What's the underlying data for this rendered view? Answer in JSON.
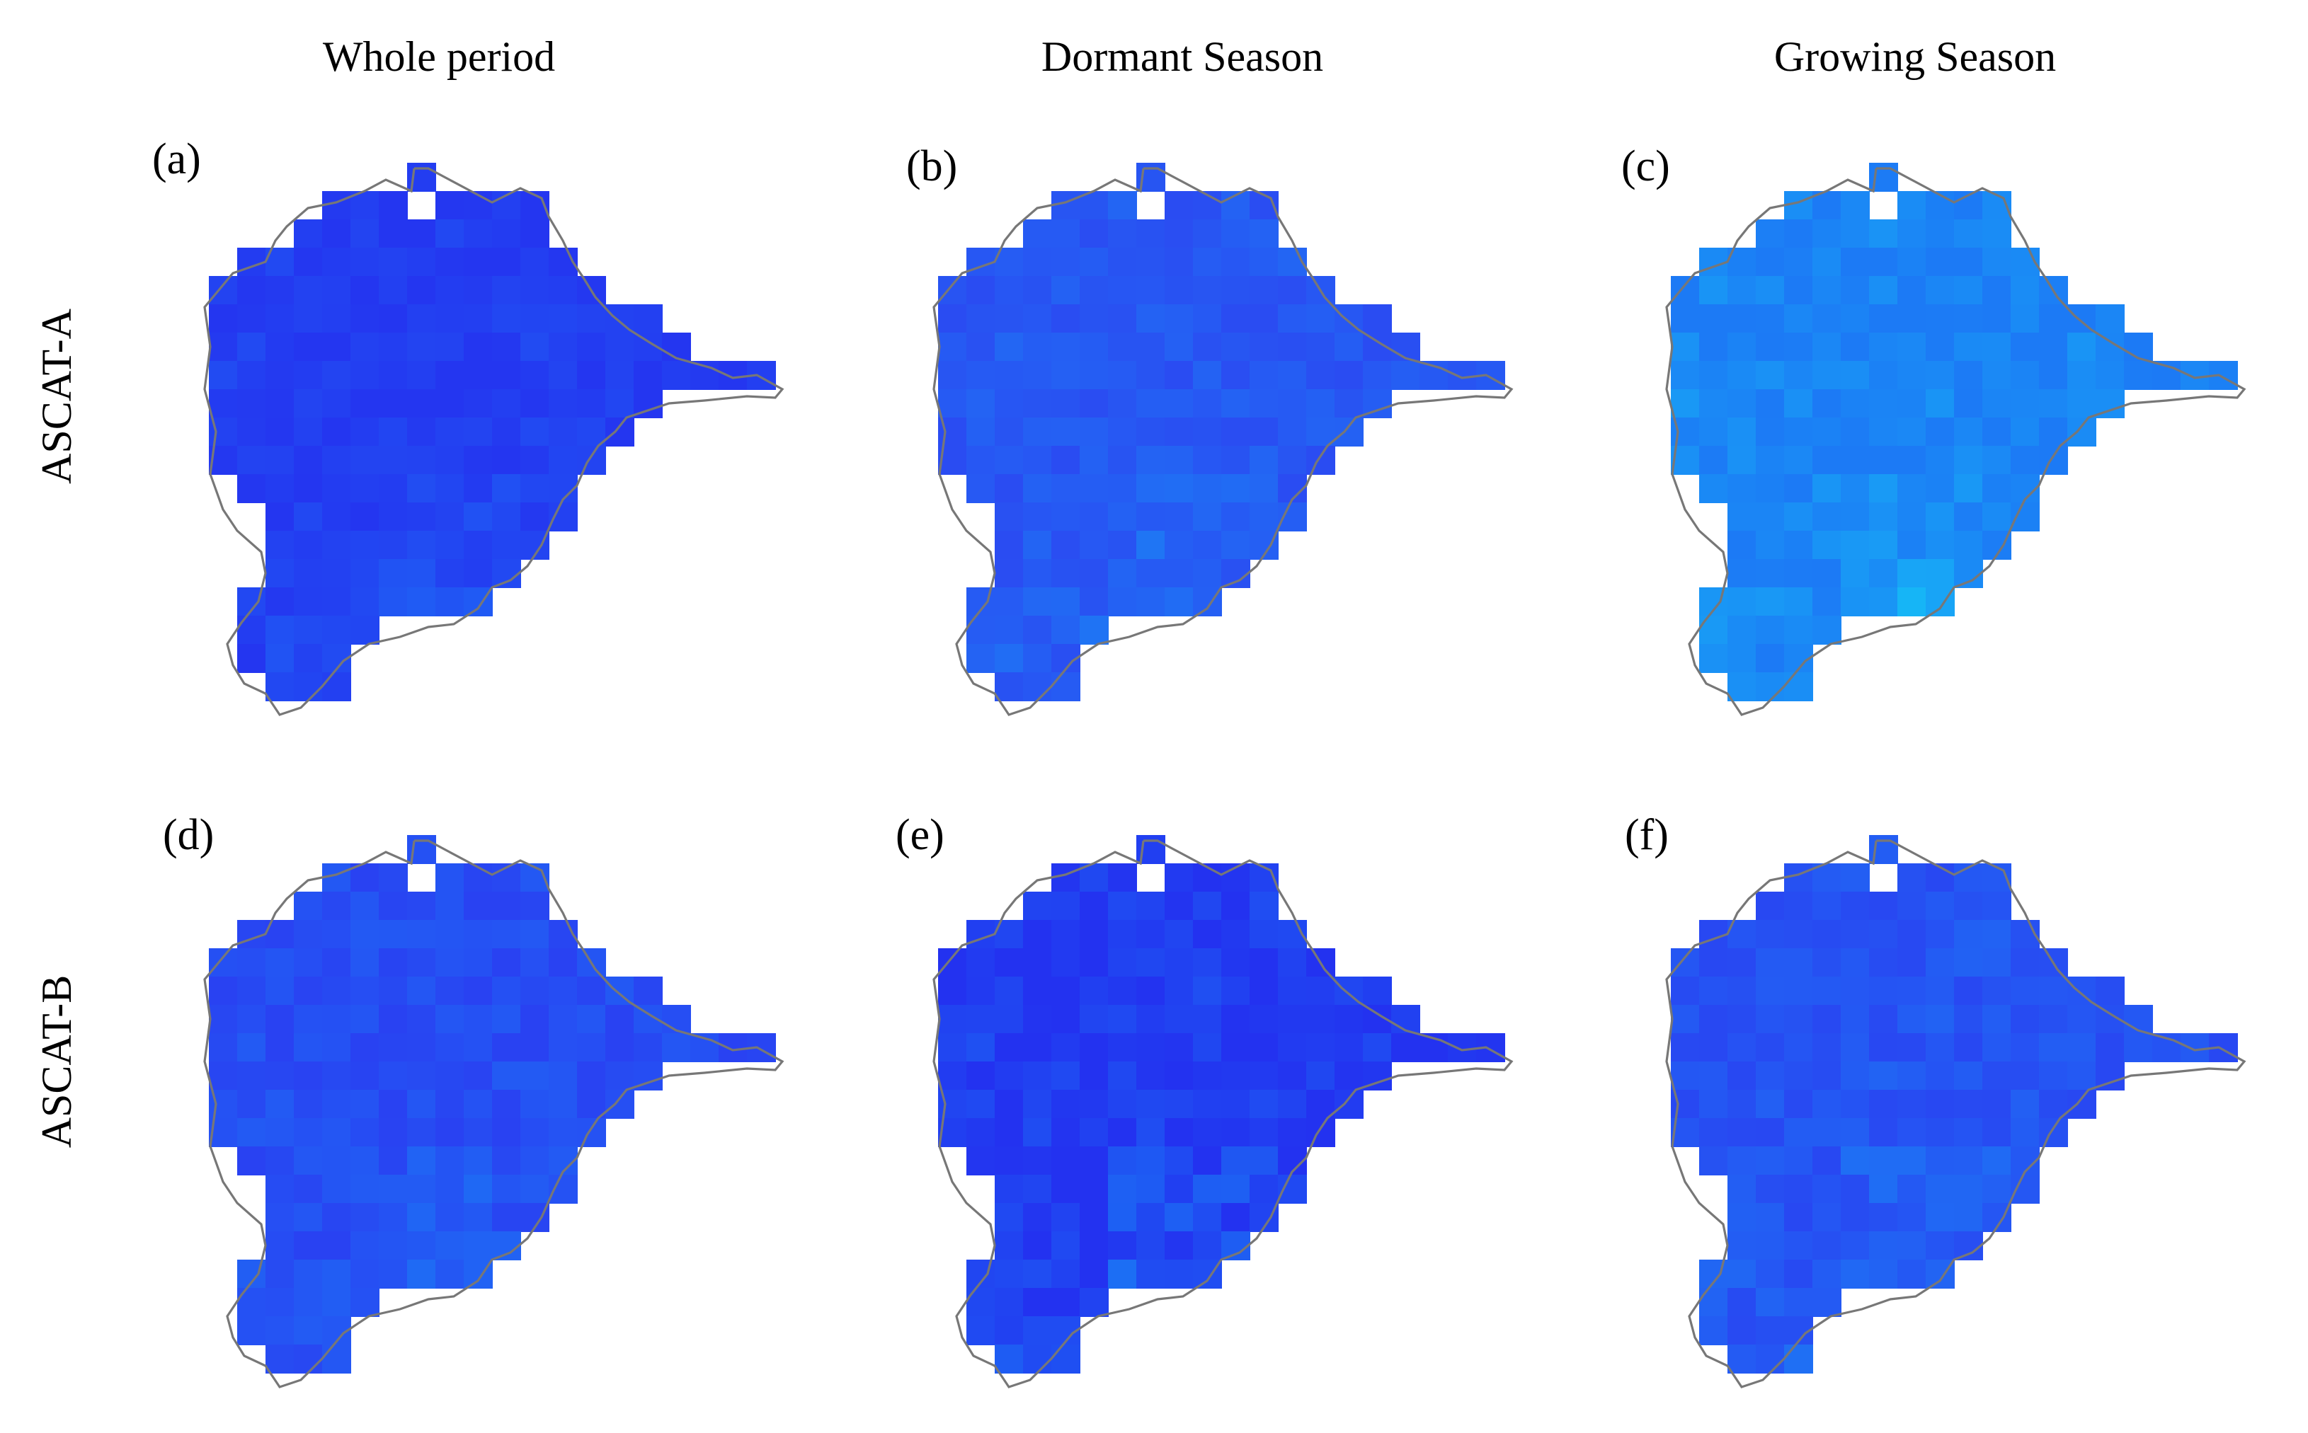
{
  "columns": {
    "whole": "Whole period",
    "dormant": "Dormant Season",
    "growing": "Growing Season"
  },
  "rows": {
    "a": "ASCAT-A",
    "b": "ASCAT-B"
  },
  "panels": [
    {
      "label": "(a)",
      "row": "ASCAT-A",
      "column": "Whole period",
      "base_color": "#2436f0",
      "light_color": "#1f66f5",
      "darkness": 0.15
    },
    {
      "label": "(b)",
      "row": "ASCAT-A",
      "column": "Dormant Season",
      "base_color": "#2a4cf2",
      "light_color": "#1a86f5",
      "darkness": 0.1
    },
    {
      "label": "(c)",
      "row": "ASCAT-A",
      "column": "Growing Season",
      "base_color": "#1c7af5",
      "light_color": "#15c0f6",
      "darkness": 0.25
    },
    {
      "label": "(d)",
      "row": "ASCAT-B",
      "column": "Whole period",
      "base_color": "#2942f2",
      "light_color": "#1a7df5",
      "darkness": 0.1
    },
    {
      "label": "(e)",
      "row": "ASCAT-B",
      "column": "Dormant Season",
      "base_color": "#2332f0",
      "light_color": "#1a7df5",
      "darkness": 0.2
    },
    {
      "label": "(f)",
      "row": "ASCAT-B",
      "column": "Growing Season",
      "base_color": "#2848f2",
      "light_color": "#1a85f5",
      "darkness": 0.1
    }
  ],
  "outline_color": "#777777"
}
